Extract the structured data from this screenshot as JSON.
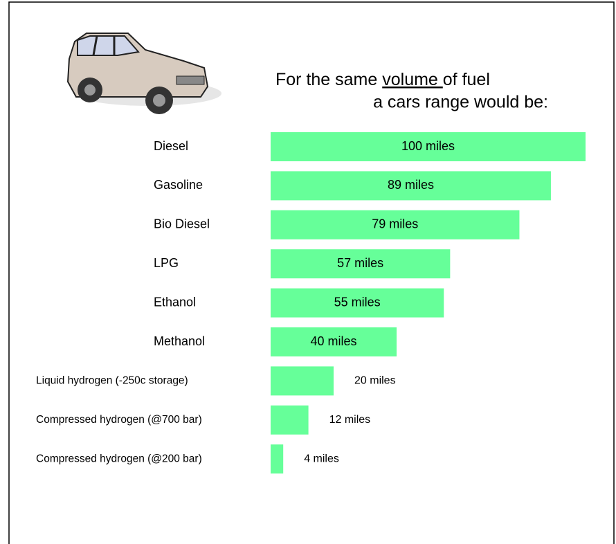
{
  "chart_data": {
    "type": "bar",
    "orientation": "horizontal",
    "title_line1": [
      "For the same ",
      "volume ",
      "of fuel"
    ],
    "title_line2": "a cars range would be:",
    "categories": [
      "Diesel",
      "Gasoline",
      "Bio Diesel",
      "LPG",
      "Ethanol",
      "Methanol",
      "Liquid hydrogen (-250c storage)",
      "Compressed hydrogen (@700 bar)",
      "Compressed hydrogen (@200 bar)"
    ],
    "values": [
      100,
      89,
      79,
      57,
      55,
      40,
      20,
      12,
      4
    ],
    "value_labels": [
      "100 miles",
      "89 miles",
      "79 miles",
      "57 miles",
      "55 miles",
      "40 miles",
      "20 miles",
      "12 miles",
      "4 miles"
    ],
    "color": "#66ff99",
    "xlim": [
      0,
      100
    ]
  }
}
